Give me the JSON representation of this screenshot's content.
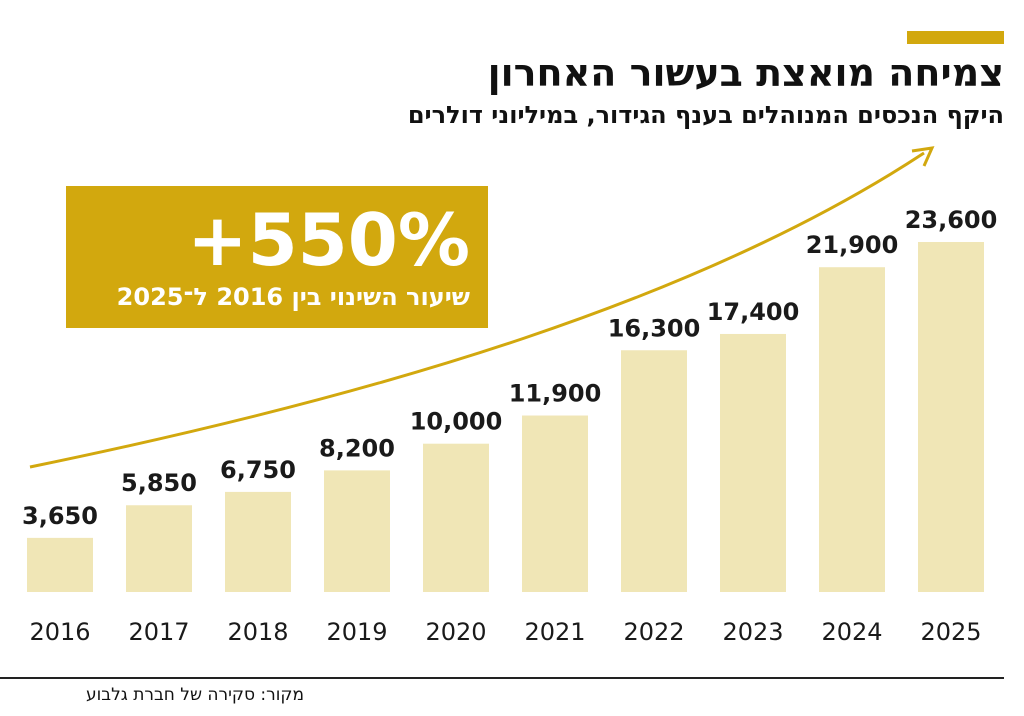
{
  "header": {
    "title": "צמיחה מואצת בעשור האחרון",
    "subtitle": "היקף הנכסים המנוהלים בענף הגידור, במיליוני דולרים"
  },
  "callout": {
    "value": "+550%",
    "label": "שיעור השינוי בין 2016 ל־2025"
  },
  "footer": {
    "source": "מקור: סקירה של חברת גלבוע"
  },
  "colors": {
    "accent": "#d2a80e",
    "bar": "#f0e6b6",
    "text": "#1a1a1a"
  },
  "chart_data": {
    "type": "bar",
    "categories": [
      "2016",
      "2017",
      "2018",
      "2019",
      "2020",
      "2021",
      "2022",
      "2023",
      "2024",
      "2025"
    ],
    "values": [
      3650,
      5850,
      6750,
      8200,
      10000,
      11900,
      16300,
      17400,
      21900,
      23600
    ],
    "value_labels": [
      "3,650",
      "5,850",
      "6,750",
      "8,200",
      "10,000",
      "11,900",
      "16,300",
      "17,400",
      "21,900",
      "23,600"
    ],
    "ylim": [
      0,
      23600
    ],
    "grid": false,
    "legend": "none",
    "trend_arrow": true
  }
}
